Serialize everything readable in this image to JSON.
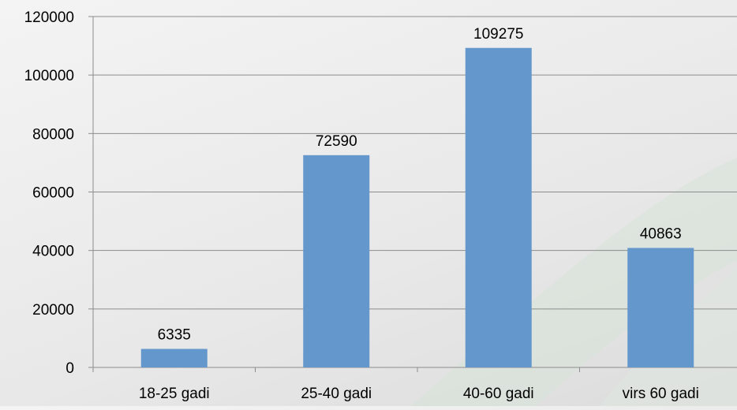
{
  "chart_data": {
    "type": "bar",
    "categories": [
      "18-25 gadi",
      "25-40 gadi",
      "40-60 gadi",
      "virs 60 gadi"
    ],
    "values": [
      6335,
      72590,
      109275,
      40863
    ],
    "data_labels": [
      "6335",
      "72590",
      "109275",
      "40863"
    ],
    "ylim": [
      0,
      120000
    ],
    "y_ticks": [
      0,
      20000,
      40000,
      60000,
      80000,
      100000,
      120000
    ],
    "y_tick_labels": [
      "0",
      "20000",
      "40000",
      "60000",
      "80000",
      "100000",
      "120000"
    ],
    "grid": true,
    "legend": "none",
    "colors": {
      "bar": "#6497CC",
      "grid": "#8c8c8c",
      "axis": "#8c8c8c",
      "decor_swoosh": "#d7e3d7"
    }
  }
}
